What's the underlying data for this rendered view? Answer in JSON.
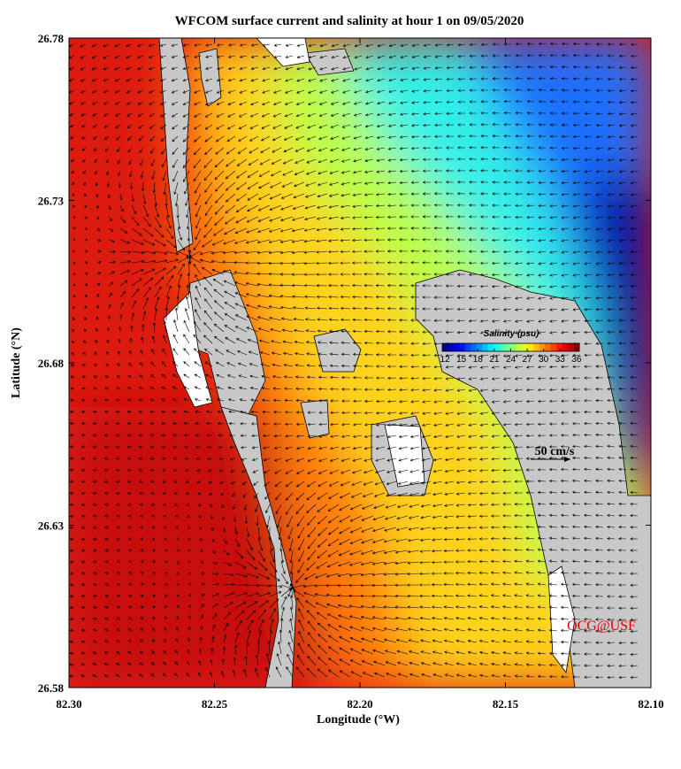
{
  "map": {
    "title": "WFCOM surface current and salinity at hour 1 on 09/05/2020",
    "xlabel": "Longitude (°W)",
    "ylabel": "Latitude (°N)",
    "xlim": [
      82.3,
      82.1
    ],
    "ylim": [
      26.58,
      26.78
    ],
    "xticks": [
      {
        "value": 82.3,
        "label": "82.30"
      },
      82.25,
      {
        "value": 82.2,
        "label": "82.20"
      },
      82.15,
      {
        "value": 82.1,
        "label": "82.10"
      }
    ],
    "yticks": [
      26.58,
      26.63,
      26.68,
      26.73,
      26.78
    ],
    "colorbar": {
      "label": "Salinity (psu)",
      "lim": [
        11.5,
        36.5
      ],
      "ticks": [
        12,
        15,
        18,
        21,
        24,
        27,
        30,
        33,
        36
      ]
    },
    "scale_label": "50 cm/s",
    "credit": "OCG@USF"
  }
}
